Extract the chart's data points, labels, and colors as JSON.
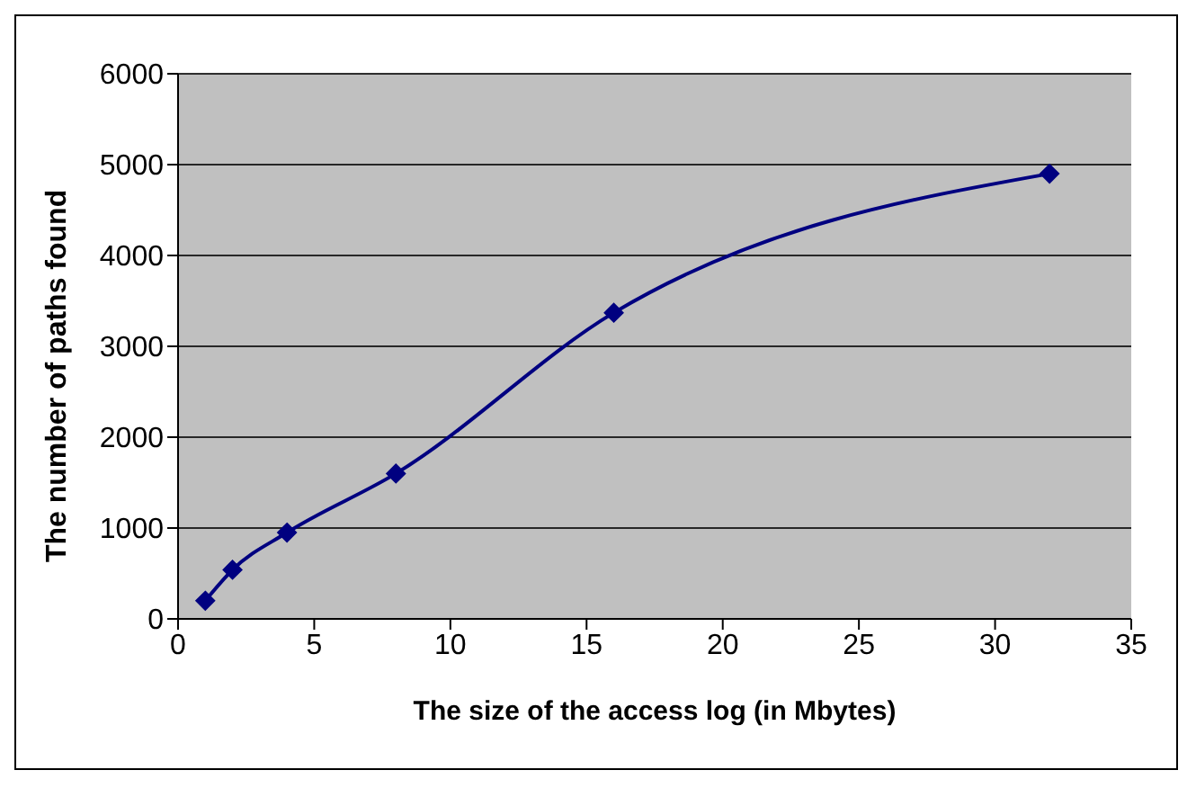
{
  "chart_data": {
    "type": "line",
    "xlabel": "The size of the access log (in Mbytes)",
    "ylabel": "The number of paths found",
    "x": [
      1,
      2,
      4,
      8,
      16,
      32
    ],
    "series": [
      {
        "color": "#000080",
        "values": [
          200,
          540,
          950,
          1600,
          3370,
          4900
        ]
      }
    ],
    "xlim": [
      0,
      35
    ],
    "xticks": [
      0,
      5,
      10,
      15,
      20,
      25,
      30,
      35
    ],
    "ylim": [
      0,
      6000
    ],
    "yticks": [
      0,
      1000,
      2000,
      3000,
      4000,
      5000,
      6000
    ],
    "grid": "y",
    "marker": "diamond",
    "legend": false
  }
}
